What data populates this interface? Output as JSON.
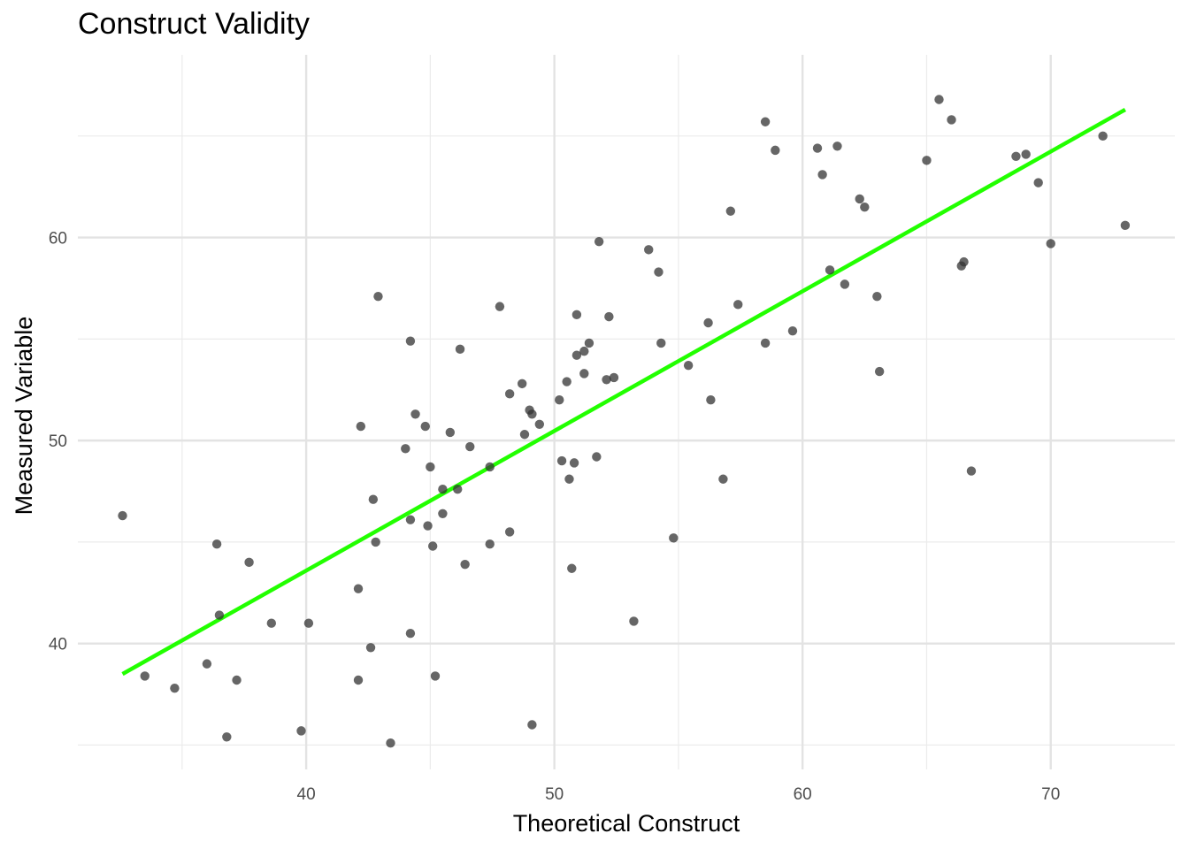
{
  "chart_data": {
    "type": "scatter",
    "title": "Construct Validity",
    "xlabel": "Theoretical Construct",
    "ylabel": "Measured Variable",
    "xlim": [
      30.8,
      75.0
    ],
    "ylim": [
      33.8,
      69.0
    ],
    "x_ticks": [
      40,
      50,
      60,
      70
    ],
    "y_ticks": [
      40,
      50,
      60
    ],
    "x_minor_ticks": [
      35,
      45,
      55,
      65
    ],
    "y_minor_ticks": [
      35,
      45,
      55,
      65
    ],
    "grid": true,
    "point_color": "#333333",
    "line_color": "#22ff00",
    "trend_line": {
      "x": [
        32.6,
        73.0
      ],
      "y": [
        38.5,
        66.3
      ]
    },
    "points": [
      [
        32.6,
        46.3
      ],
      [
        33.5,
        38.4
      ],
      [
        34.7,
        37.8
      ],
      [
        36.0,
        39.0
      ],
      [
        36.4,
        44.9
      ],
      [
        36.5,
        41.4
      ],
      [
        36.8,
        35.4
      ],
      [
        37.2,
        38.2
      ],
      [
        37.7,
        44.0
      ],
      [
        38.6,
        41.0
      ],
      [
        39.8,
        35.7
      ],
      [
        40.1,
        41.0
      ],
      [
        42.1,
        42.7
      ],
      [
        42.1,
        38.2
      ],
      [
        42.2,
        50.7
      ],
      [
        42.6,
        39.8
      ],
      [
        42.7,
        47.1
      ],
      [
        42.8,
        45.0
      ],
      [
        42.9,
        57.1
      ],
      [
        43.4,
        35.1
      ],
      [
        44.0,
        49.6
      ],
      [
        44.2,
        46.1
      ],
      [
        44.2,
        40.5
      ],
      [
        44.2,
        54.9
      ],
      [
        44.4,
        51.3
      ],
      [
        44.8,
        50.7
      ],
      [
        44.9,
        45.8
      ],
      [
        45.0,
        48.7
      ],
      [
        45.1,
        44.8
      ],
      [
        45.2,
        38.4
      ],
      [
        45.5,
        46.4
      ],
      [
        45.5,
        47.6
      ],
      [
        45.8,
        50.4
      ],
      [
        46.1,
        47.6
      ],
      [
        46.2,
        54.5
      ],
      [
        46.4,
        43.9
      ],
      [
        46.6,
        49.7
      ],
      [
        47.4,
        48.7
      ],
      [
        47.4,
        44.9
      ],
      [
        47.8,
        56.6
      ],
      [
        48.2,
        52.3
      ],
      [
        48.2,
        45.5
      ],
      [
        48.7,
        52.8
      ],
      [
        48.8,
        50.3
      ],
      [
        49.0,
        51.5
      ],
      [
        49.1,
        51.3
      ],
      [
        49.1,
        36.0
      ],
      [
        49.4,
        50.8
      ],
      [
        50.2,
        52.0
      ],
      [
        50.3,
        49.0
      ],
      [
        50.5,
        52.9
      ],
      [
        50.6,
        48.1
      ],
      [
        50.7,
        43.7
      ],
      [
        50.8,
        48.9
      ],
      [
        50.9,
        56.2
      ],
      [
        50.9,
        54.2
      ],
      [
        51.2,
        53.3
      ],
      [
        51.2,
        54.4
      ],
      [
        51.4,
        54.8
      ],
      [
        51.7,
        49.2
      ],
      [
        51.8,
        59.8
      ],
      [
        52.1,
        53.0
      ],
      [
        52.2,
        56.1
      ],
      [
        52.4,
        53.1
      ],
      [
        53.2,
        41.1
      ],
      [
        53.8,
        59.4
      ],
      [
        54.2,
        58.3
      ],
      [
        54.3,
        54.8
      ],
      [
        54.8,
        45.2
      ],
      [
        55.4,
        53.7
      ],
      [
        56.2,
        55.8
      ],
      [
        56.3,
        52.0
      ],
      [
        56.8,
        48.1
      ],
      [
        57.1,
        61.3
      ],
      [
        57.4,
        56.7
      ],
      [
        58.5,
        65.7
      ],
      [
        58.5,
        54.8
      ],
      [
        58.9,
        64.3
      ],
      [
        59.6,
        55.4
      ],
      [
        60.6,
        64.4
      ],
      [
        60.8,
        63.1
      ],
      [
        61.1,
        58.4
      ],
      [
        61.4,
        64.5
      ],
      [
        61.7,
        57.7
      ],
      [
        62.3,
        61.9
      ],
      [
        62.5,
        61.5
      ],
      [
        63.0,
        57.1
      ],
      [
        63.1,
        53.4
      ],
      [
        65.0,
        63.8
      ],
      [
        65.5,
        66.8
      ],
      [
        66.0,
        65.8
      ],
      [
        66.4,
        58.6
      ],
      [
        66.5,
        58.8
      ],
      [
        66.8,
        48.5
      ],
      [
        68.6,
        64.0
      ],
      [
        69.0,
        64.1
      ],
      [
        69.5,
        62.7
      ],
      [
        70.0,
        59.7
      ],
      [
        72.1,
        65.0
      ],
      [
        73.0,
        60.6
      ]
    ]
  }
}
